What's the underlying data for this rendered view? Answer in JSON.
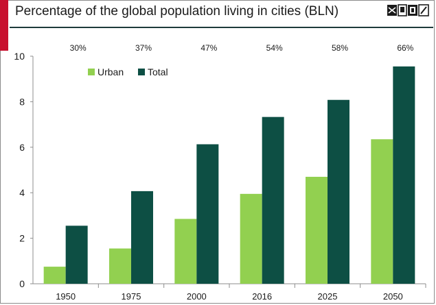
{
  "header": {
    "title": "Percentage of the global population living in cities (BLN)"
  },
  "colors": {
    "urban": "#92d050",
    "total": "#0d4f44",
    "accent": "#c8102e"
  },
  "chart_data": {
    "type": "bar",
    "categories": [
      "1950",
      "1975",
      "2000",
      "2016",
      "2025",
      "2050"
    ],
    "series": [
      {
        "name": "Urban",
        "values": [
          0.75,
          1.55,
          2.85,
          3.95,
          4.7,
          6.35
        ]
      },
      {
        "name": "Total",
        "values": [
          2.55,
          4.07,
          6.13,
          7.33,
          8.08,
          9.55
        ]
      }
    ],
    "annotations": [
      "30%",
      "37%",
      "47%",
      "54%",
      "58%",
      "66%"
    ],
    "ylim": [
      0,
      10
    ],
    "yticks": [
      0,
      2,
      4,
      6,
      8,
      10
    ],
    "grid": false,
    "legend": "top-left"
  }
}
